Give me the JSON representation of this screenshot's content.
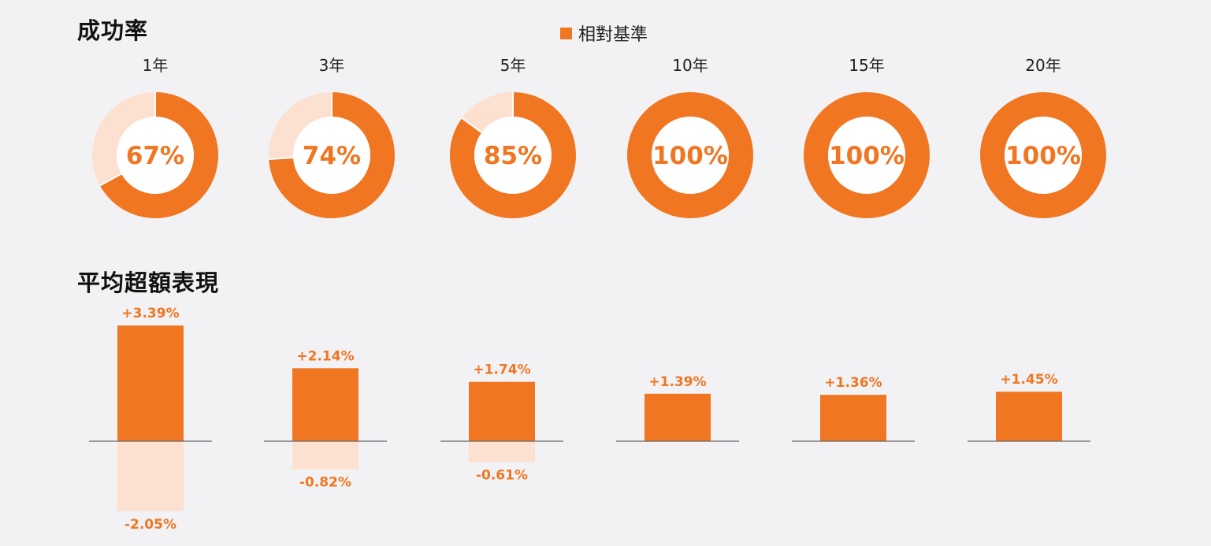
{
  "titles": {
    "success_rate": "成功率",
    "avg_excess": "平均超額表現"
  },
  "legend": {
    "label": "相對基準"
  },
  "colors": {
    "primary": "#f07621",
    "light": "#fde1d0",
    "background": "#f2f1f4",
    "axis": "#666666"
  },
  "chart_data": [
    {
      "type": "pie",
      "title": "成功率",
      "categories": [
        "1年",
        "3年",
        "5年",
        "10年",
        "15年",
        "20年"
      ],
      "values": [
        67,
        74,
        85,
        100,
        100,
        100
      ],
      "value_labels": [
        "67%",
        "74%",
        "85%",
        "100%",
        "100%",
        "100%"
      ],
      "legend": [
        "相對基準"
      ]
    },
    {
      "type": "bar",
      "title": "平均超額表現",
      "categories": [
        "1年",
        "3年",
        "5年",
        "10年",
        "15年",
        "20年"
      ],
      "series": [
        {
          "values": [
            3.39,
            2.14,
            1.74,
            1.39,
            1.36,
            1.45
          ],
          "labels": [
            "+3.39%",
            "+2.14%",
            "+1.74%",
            "+1.39%",
            "+1.36%",
            "+1.45%"
          ]
        },
        {
          "values": [
            -2.05,
            -0.82,
            -0.61,
            null,
            null,
            null
          ],
          "labels": [
            "-2.05%",
            "-0.82%",
            "-0.61%",
            "",
            "",
            ""
          ]
        }
      ]
    }
  ]
}
